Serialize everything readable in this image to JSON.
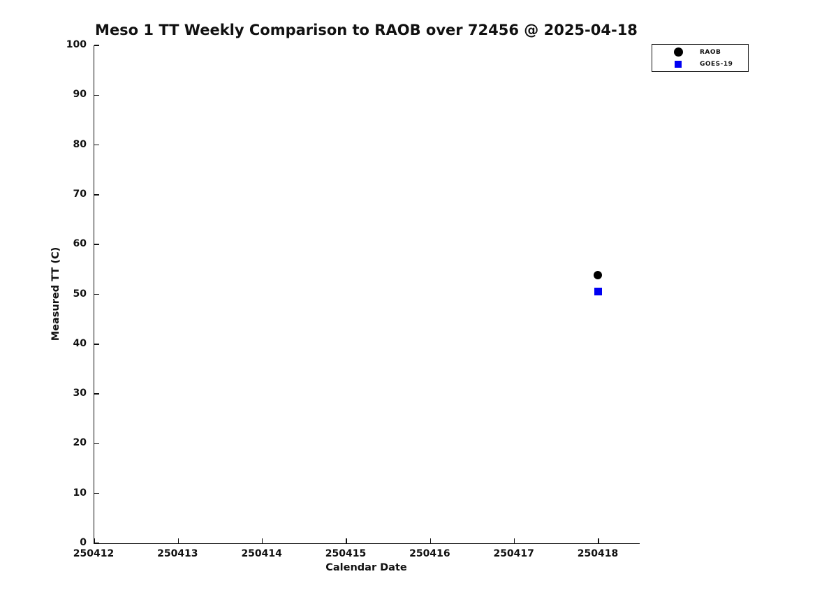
{
  "chart_data": {
    "type": "scatter",
    "title": "Meso 1 TT Weekly Comparison to RAOB over 72456 @ 2025-04-18",
    "xlabel": "Calendar Date",
    "ylabel": "Measured TT (C)",
    "xlim": [
      250412,
      250418.49
    ],
    "ylim": [
      0,
      100
    ],
    "x_ticks": [
      250412,
      250413,
      250414,
      250415,
      250416,
      250417,
      250418
    ],
    "y_ticks": [
      0,
      10,
      20,
      30,
      40,
      50,
      60,
      70,
      80,
      90,
      100
    ],
    "grid": false,
    "legend_position": "upper-right-outside-plot",
    "series": [
      {
        "name": "RAOB",
        "marker": "circle",
        "color": "#000000",
        "marker_size": 12,
        "points": [
          {
            "x": 250418,
            "y": 53.9
          }
        ]
      },
      {
        "name": "GOES-19",
        "marker": "square",
        "color": "#0000f2",
        "marker_size": 11,
        "points": [
          {
            "x": 250418,
            "y": 50.5
          }
        ]
      }
    ]
  },
  "colors": {
    "axis": "#111111",
    "text": "#111111",
    "background": "#ffffff",
    "legend_border": "#111111"
  }
}
